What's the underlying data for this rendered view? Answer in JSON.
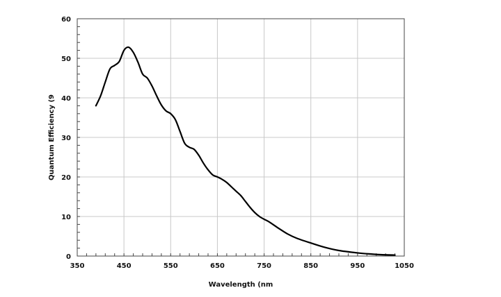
{
  "chart_data": {
    "type": "line",
    "xlabel": "Wavelength (nm",
    "ylabel": "Quantum Efficiency (9",
    "xlim": [
      350,
      1050
    ],
    "ylim": [
      0,
      60
    ],
    "x_ticks": [
      "350",
      "450",
      "550",
      "650",
      "750",
      "850",
      "950",
      "1050"
    ],
    "y_ticks": [
      "0",
      "10",
      "20",
      "30",
      "40",
      "50",
      "60"
    ],
    "grid": true,
    "line_color": "#000000",
    "grid_color": "#c8c8c8",
    "series": [
      {
        "x": [
          390,
          400,
          410,
          420,
          430,
          440,
          450,
          460,
          470,
          480,
          490,
          500,
          510,
          520,
          530,
          540,
          550,
          560,
          570,
          580,
          590,
          600,
          610,
          620,
          630,
          640,
          650,
          660,
          670,
          680,
          690,
          700,
          710,
          720,
          730,
          740,
          750,
          760,
          780,
          800,
          820,
          850,
          880,
          910,
          950,
          980,
          1000,
          1030
        ],
        "y": [
          38,
          40.5,
          44,
          47.3,
          48.2,
          49.2,
          52,
          52.8,
          51.5,
          49,
          46,
          45,
          43,
          40.5,
          38.2,
          36.7,
          36,
          34.5,
          31.5,
          28.5,
          27.5,
          27,
          25.5,
          23.5,
          21.8,
          20.5,
          20,
          19.4,
          18.6,
          17.5,
          16.4,
          15.3,
          13.8,
          12.3,
          11,
          10,
          9.3,
          8.7,
          7.1,
          5.6,
          4.5,
          3.3,
          2.2,
          1.4,
          0.8,
          0.5,
          0.35,
          0.25
        ]
      }
    ]
  }
}
